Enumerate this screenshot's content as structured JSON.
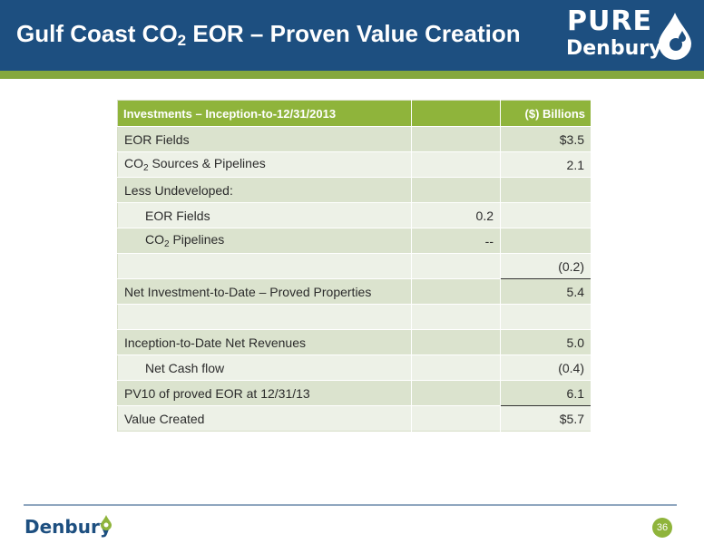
{
  "header": {
    "title_part1": "Gulf Coast CO",
    "title_sub": "2",
    "title_part2": " EOR – Proven Value Creation",
    "logo_top": "PURE",
    "logo_bottom": "Denbury"
  },
  "table": {
    "header": {
      "label": "Investments – Inception-to-12/31/2013",
      "middle": "",
      "unit": "($) Billions"
    },
    "rows": [
      {
        "label": "EOR Fields",
        "mid": "",
        "value": "$3.5"
      },
      {
        "label_pre": "CO",
        "label_sub": "2",
        "label_post": " Sources & Pipelines",
        "mid": "",
        "value": "2.1"
      },
      {
        "label": "Less Undeveloped:",
        "mid": "",
        "value": ""
      },
      {
        "label": "EOR Fields",
        "mid": "0.2",
        "value": ""
      },
      {
        "label_pre": "CO",
        "label_sub": "2",
        "label_post": " Pipelines",
        "mid": "--",
        "value": ""
      },
      {
        "label": "",
        "mid": "",
        "value": "(0.2)"
      },
      {
        "label": "Net Investment-to-Date – Proved Properties",
        "mid": "",
        "value": "5.4"
      },
      {
        "label": "",
        "mid": "",
        "value": ""
      },
      {
        "label": "Inception-to-Date Net Revenues",
        "mid": "",
        "value": "5.0"
      },
      {
        "label": "Net Cash flow",
        "mid": "",
        "value": "(0.4)"
      },
      {
        "label": "PV10 of proved EOR at 12/31/13",
        "mid": "",
        "value": "6.1"
      },
      {
        "label": "Value Created",
        "mid": "",
        "value": "$5.7"
      }
    ]
  },
  "footer": {
    "logo": "Denbury",
    "page_number": "36"
  },
  "colors": {
    "header_blue": "#1d4f80",
    "accent_green": "#8fb43b",
    "row_dark": "#dbe3ce",
    "row_light": "#edf1e7"
  }
}
